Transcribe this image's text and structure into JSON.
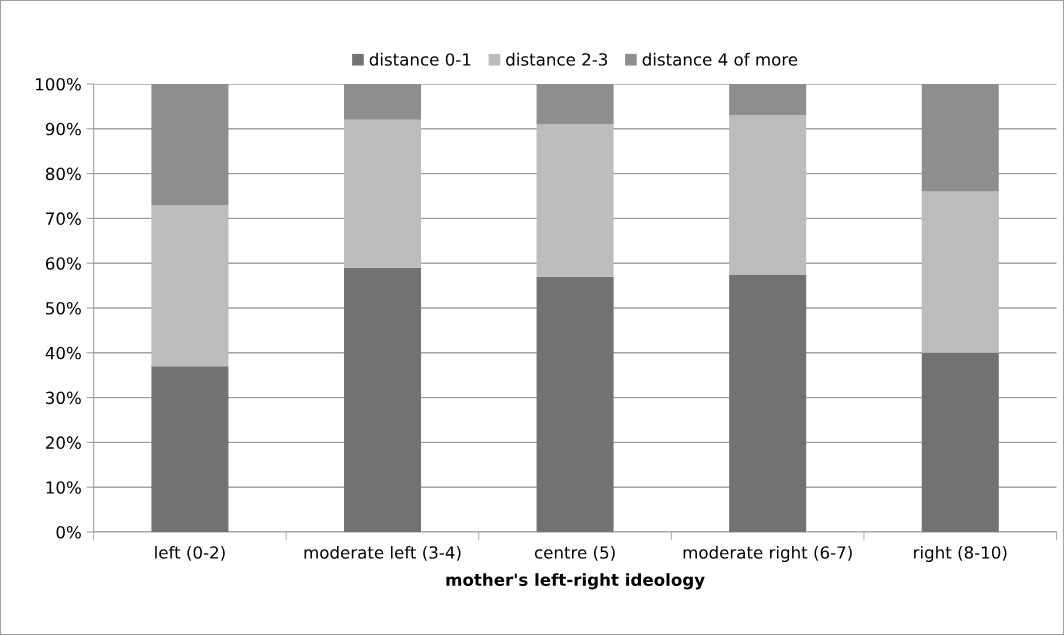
{
  "chart_data": {
    "type": "bar",
    "stacked": true,
    "xlabel": "mother's left-right ideology",
    "categories": [
      "left (0-2)",
      "moderate left (3-4)",
      "centre (5)",
      "moderate right (6-7)",
      "right (8-10)"
    ],
    "series": [
      {
        "name": "distance 0-1",
        "color": "#727272",
        "values": [
          37,
          59,
          57,
          57.5,
          40
        ]
      },
      {
        "name": "distance 2-3",
        "color": "#bcbcbc",
        "values": [
          36,
          33,
          34,
          35.5,
          36
        ]
      },
      {
        "name": "distance 4 of more",
        "color": "#8e8e8e",
        "values": [
          27,
          8,
          9,
          7,
          24
        ]
      }
    ],
    "ylim": [
      0,
      100
    ],
    "yticks": [
      {
        "value": 0,
        "label": "0%"
      },
      {
        "value": 10,
        "label": "10%"
      },
      {
        "value": 20,
        "label": "20%"
      },
      {
        "value": 30,
        "label": "30%"
      },
      {
        "value": 40,
        "label": "40%"
      },
      {
        "value": 50,
        "label": "50%"
      },
      {
        "value": 60,
        "label": "60%"
      },
      {
        "value": 70,
        "label": "70%"
      },
      {
        "value": 80,
        "label": "80%"
      },
      {
        "value": 90,
        "label": "90%"
      },
      {
        "value": 100,
        "label": "100%"
      }
    ],
    "grid": "y",
    "legend": "top"
  }
}
